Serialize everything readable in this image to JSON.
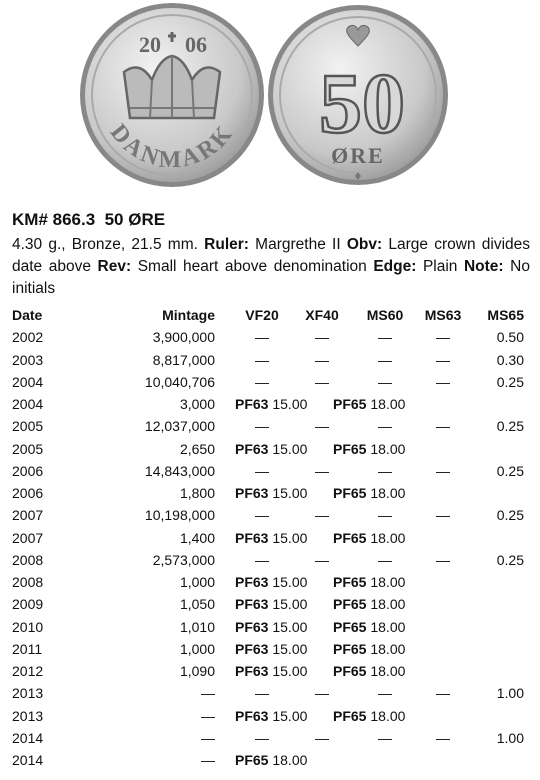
{
  "coins": {
    "obverse": {
      "date_left": "20",
      "date_right": "06",
      "legend": "DANMARK"
    },
    "reverse": {
      "denomination": "50",
      "unit": "ØRE"
    }
  },
  "header": {
    "title": "KM# 866.3  50 ØRE"
  },
  "description": [
    {
      "text": "4.30 g., Bronze, 21.5 mm."
    },
    {
      "label": "Ruler:",
      "text": "Margrethe II"
    },
    {
      "label": "Obv:",
      "text": "Large crown divides date above"
    },
    {
      "label": "Rev:",
      "text": "Small heart above denomination"
    },
    {
      "label": "Edge:",
      "text": "Plain"
    },
    {
      "label": "Note:",
      "text": "No initials"
    }
  ],
  "table": {
    "columns": [
      "Date",
      "Mintage",
      "VF20",
      "XF40",
      "MS60",
      "MS63",
      "MS65"
    ],
    "rows": [
      {
        "date": "2002",
        "mintage": "3,900,000",
        "grades": [
          "—",
          "—",
          "—",
          "—",
          "0.50"
        ]
      },
      {
        "date": "2003",
        "mintage": "8,817,000",
        "grades": [
          "—",
          "—",
          "—",
          "—",
          "0.30"
        ]
      },
      {
        "date": "2004",
        "mintage": "10,040,706",
        "grades": [
          "—",
          "—",
          "—",
          "—",
          "0.25"
        ]
      },
      {
        "date": "2004",
        "mintage": "3,000",
        "proof": [
          {
            "grade": "PF63",
            "price": "15.00"
          },
          {
            "grade": "PF65",
            "price": "18.00"
          }
        ]
      },
      {
        "date": "2005",
        "mintage": "12,037,000",
        "grades": [
          "—",
          "—",
          "—",
          "—",
          "0.25"
        ]
      },
      {
        "date": "2005",
        "mintage": "2,650",
        "proof": [
          {
            "grade": "PF63",
            "price": "15.00"
          },
          {
            "grade": "PF65",
            "price": "18.00"
          }
        ]
      },
      {
        "date": "2006",
        "mintage": "14,843,000",
        "grades": [
          "—",
          "—",
          "—",
          "—",
          "0.25"
        ]
      },
      {
        "date": "2006",
        "mintage": "1,800",
        "proof": [
          {
            "grade": "PF63",
            "price": "15.00"
          },
          {
            "grade": "PF65",
            "price": "18.00"
          }
        ]
      },
      {
        "date": "2007",
        "mintage": "10,198,000",
        "grades": [
          "—",
          "—",
          "—",
          "—",
          "0.25"
        ]
      },
      {
        "date": "2007",
        "mintage": "1,400",
        "proof": [
          {
            "grade": "PF63",
            "price": "15.00"
          },
          {
            "grade": "PF65",
            "price": "18.00"
          }
        ]
      },
      {
        "date": "2008",
        "mintage": "2,573,000",
        "grades": [
          "—",
          "—",
          "—",
          "—",
          "0.25"
        ]
      },
      {
        "date": "2008",
        "mintage": "1,000",
        "proof": [
          {
            "grade": "PF63",
            "price": "15.00"
          },
          {
            "grade": "PF65",
            "price": "18.00"
          }
        ]
      },
      {
        "date": "2009",
        "mintage": "1,050",
        "proof": [
          {
            "grade": "PF63",
            "price": "15.00"
          },
          {
            "grade": "PF65",
            "price": "18.00"
          }
        ]
      },
      {
        "date": "2010",
        "mintage": "1,010",
        "proof": [
          {
            "grade": "PF63",
            "price": "15.00"
          },
          {
            "grade": "PF65",
            "price": "18.00"
          }
        ]
      },
      {
        "date": "2011",
        "mintage": "1,000",
        "proof": [
          {
            "grade": "PF63",
            "price": "15.00"
          },
          {
            "grade": "PF65",
            "price": "18.00"
          }
        ]
      },
      {
        "date": "2012",
        "mintage": "1,090",
        "proof": [
          {
            "grade": "PF63",
            "price": "15.00"
          },
          {
            "grade": "PF65",
            "price": "18.00"
          }
        ]
      },
      {
        "date": "2013",
        "mintage": "—",
        "grades": [
          "—",
          "—",
          "—",
          "—",
          "1.00"
        ]
      },
      {
        "date": "2013",
        "mintage": "—",
        "proof": [
          {
            "grade": "PF63",
            "price": "15.00"
          },
          {
            "grade": "PF65",
            "price": "18.00"
          }
        ]
      },
      {
        "date": "2014",
        "mintage": "—",
        "grades": [
          "—",
          "—",
          "—",
          "—",
          "1.00"
        ]
      },
      {
        "date": "2014",
        "mintage": "—",
        "proof": [
          {
            "grade": "PF65",
            "price": "18.00"
          }
        ]
      }
    ]
  }
}
